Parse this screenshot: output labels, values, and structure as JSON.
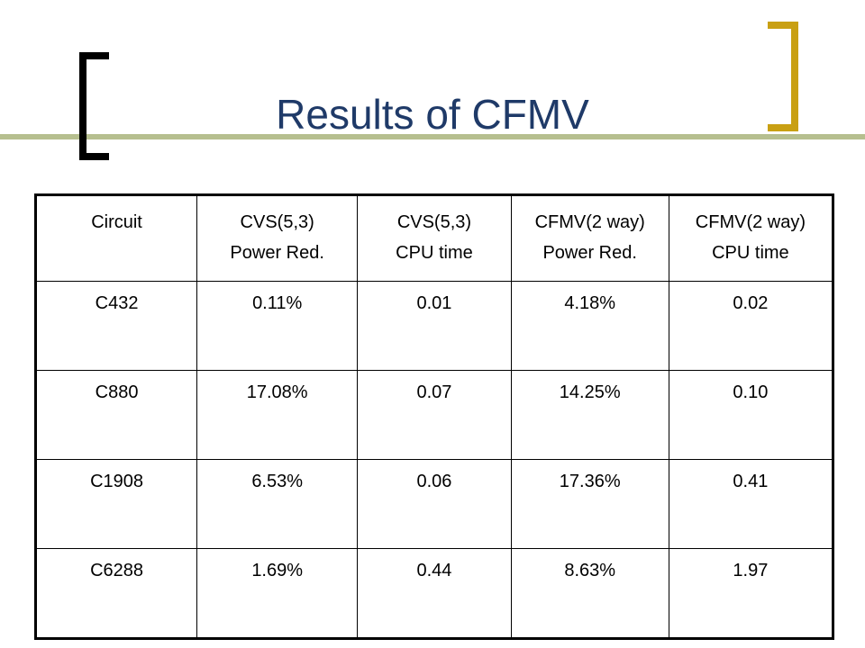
{
  "slide": {
    "title": "Results of CFMV",
    "colors": {
      "title": "#1f3a68",
      "bracket_dark": "#000000",
      "bracket_gold": "#c9a013",
      "line_green": "#b6bf8f"
    }
  },
  "table": {
    "headers": [
      {
        "line1": "Circuit",
        "line2": ""
      },
      {
        "line1": "CVS(5,3)",
        "line2": "Power Red."
      },
      {
        "line1": "CVS(5,3)",
        "line2": "CPU time"
      },
      {
        "line1": "CFMV(2 way)",
        "line2": "Power Red."
      },
      {
        "line1": "CFMV(2 way)",
        "line2": "CPU time"
      }
    ],
    "rows": [
      [
        "C432",
        "0.11%",
        "0.01",
        "4.18%",
        "0.02"
      ],
      [
        "C880",
        "17.08%",
        "0.07",
        "14.25%",
        "0.10"
      ],
      [
        "C1908",
        "6.53%",
        "0.06",
        "17.36%",
        "0.41"
      ],
      [
        "C6288",
        "1.69%",
        "0.44",
        "8.63%",
        "1.97"
      ]
    ]
  }
}
